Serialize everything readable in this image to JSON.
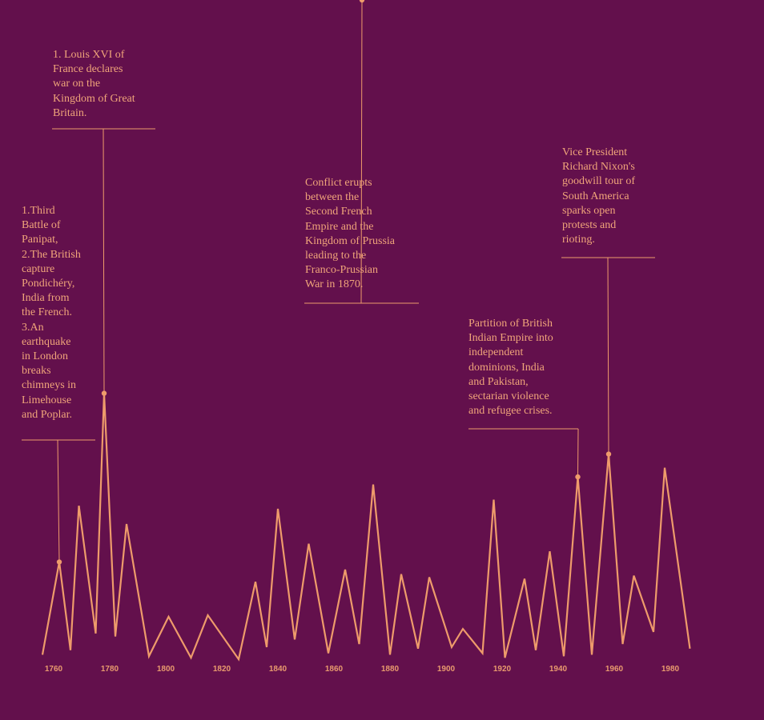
{
  "colors": {
    "background": "#63104c",
    "line": "#ee9b6b",
    "annotation": "#f0a57a",
    "tick": "#e89a6e"
  },
  "chart_data": {
    "type": "line",
    "title": "",
    "xlabel": "",
    "ylabel": "",
    "xlim": [
      1755,
      1987
    ],
    "grid": false,
    "legend": "none",
    "x_ticks": [
      "1760",
      "1780",
      "1800",
      "1820",
      "1840",
      "1860",
      "1880",
      "1900",
      "1920",
      "1940",
      "1960",
      "1980"
    ],
    "x": [
      1756,
      1762,
      1766,
      1769,
      1775,
      1778,
      1782,
      1786,
      1794,
      1801,
      1809,
      1815,
      1826,
      1832,
      1836,
      1840,
      1846,
      1851,
      1858,
      1864,
      1869,
      1874,
      1880,
      1884,
      1890,
      1894,
      1902,
      1906,
      1913,
      1917,
      1921,
      1928,
      1932,
      1937,
      1942,
      1947,
      1952,
      1958,
      1963,
      1967,
      1974,
      1978,
      1987
    ],
    "y": [
      4,
      65,
      7,
      102,
      18,
      176,
      16,
      90,
      3,
      29,
      2,
      30,
      1,
      52,
      9,
      100,
      14,
      77,
      5,
      60,
      11,
      116,
      4,
      57,
      8,
      55,
      9,
      21,
      5,
      106,
      2,
      54,
      7,
      72,
      3,
      121,
      4,
      136,
      11,
      56,
      19,
      127,
      8
    ],
    "annotations": [
      {
        "x": 1762,
        "text": "1.Third\nBattle of\nPanipat,\n2.The British\ncapture\nPondichéry,\nIndia from\nthe French.\n3.An\nearthquake\nin London\nbreaks\nchimneys in\nLimehouse\nand Poplar."
      },
      {
        "x": 1778,
        "text": "1. Louis XVI of\nFrance declares\nwar on the\nKingdom of Great\nBritain."
      },
      {
        "x": 1870,
        "text": "Conflict erupts\nbetween the\nSecond French\nEmpire and the\nKingdom of Prussia\nleading to the\nFranco-Prussian\nWar in 1870."
      },
      {
        "x": 1947,
        "text": "Partition of British\nIndian Empire into\nindependent\ndominions, India\nand Pakistan,\nsectarian violence\nand refugee crises."
      },
      {
        "x": 1958,
        "text": "Vice President\nRichard Nixon's\ngoodwill tour of\nSouth America\nsparks open\nprotests and\nrioting."
      }
    ]
  }
}
